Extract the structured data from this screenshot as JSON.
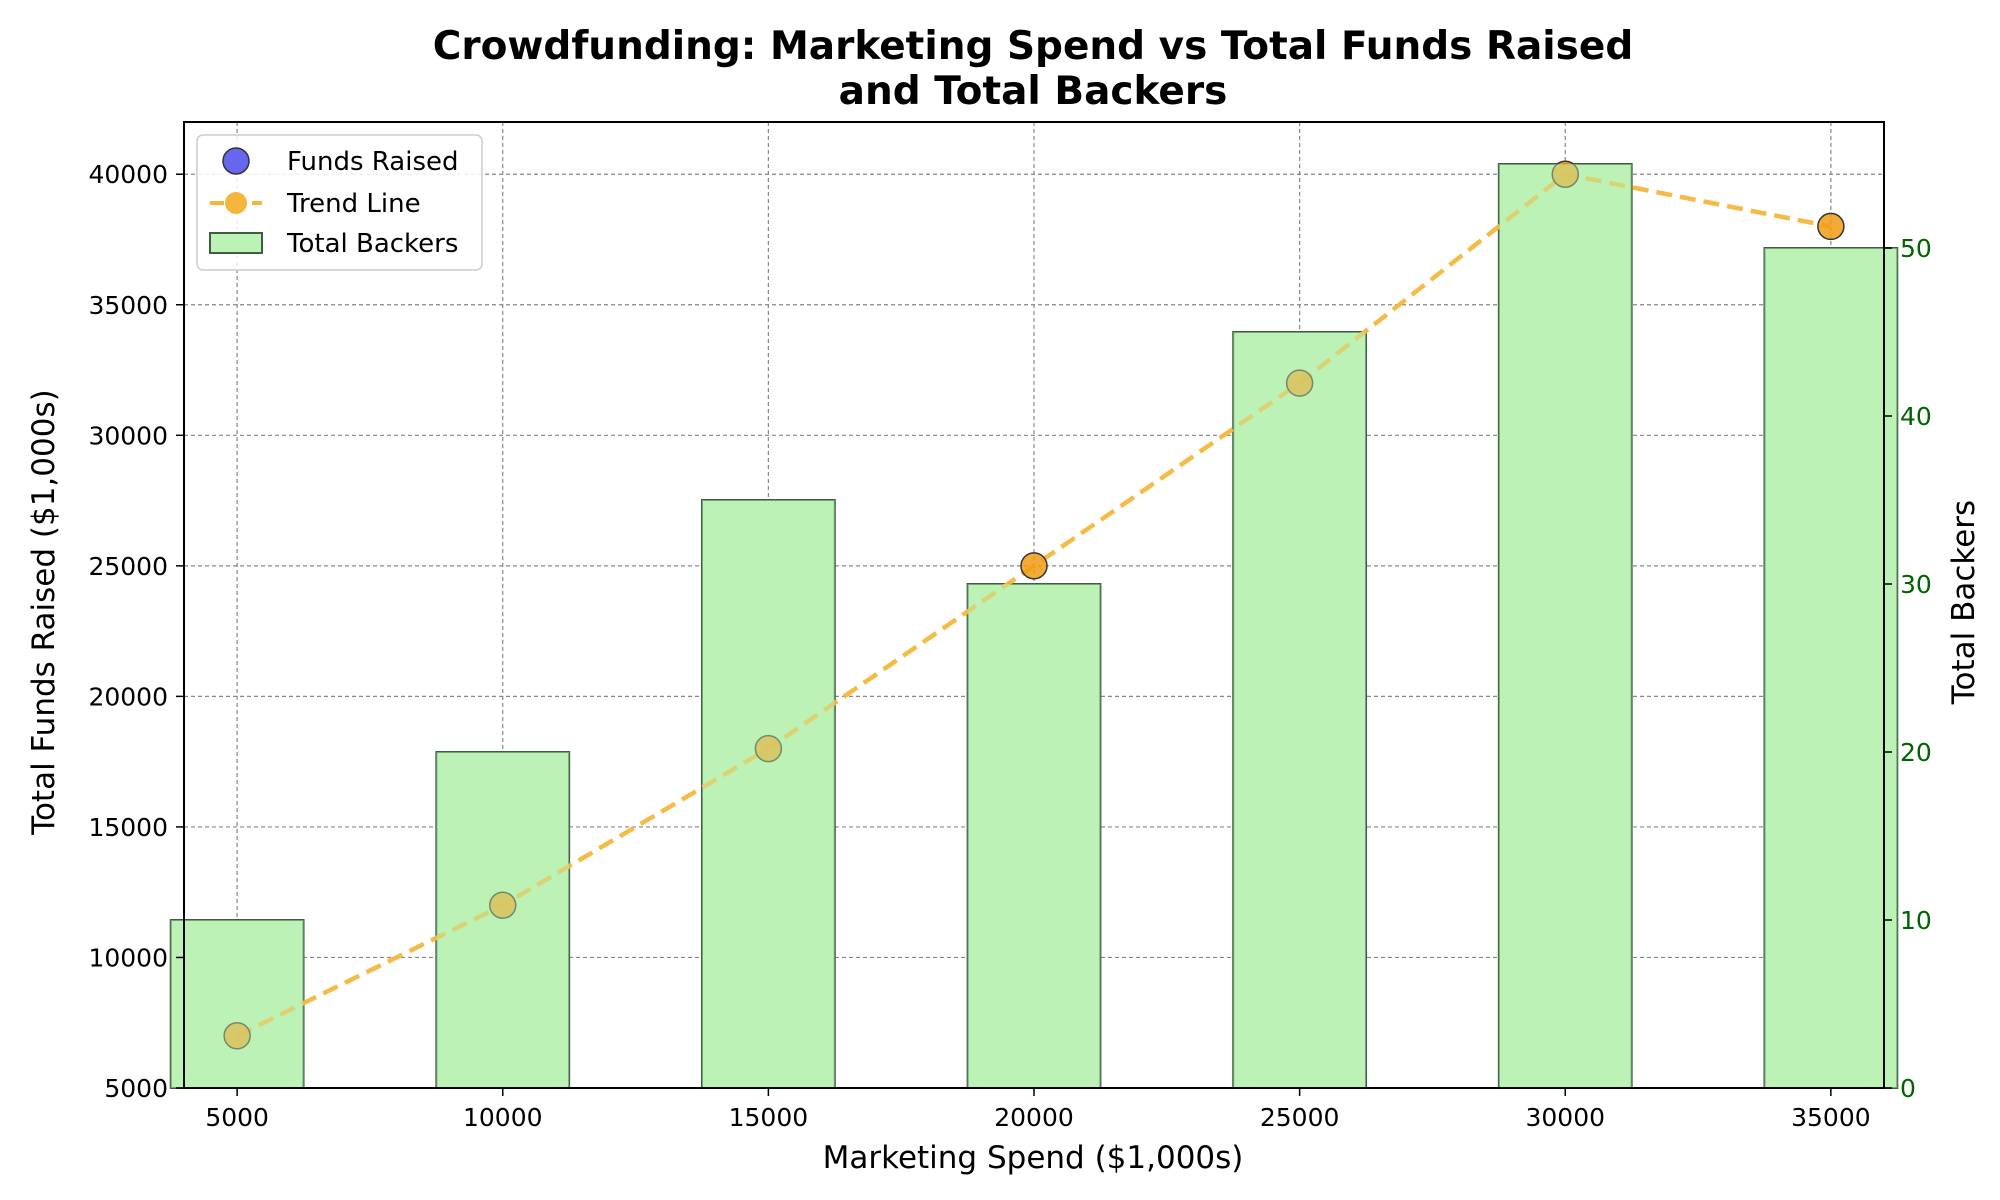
{
  "chart_data": {
    "type": "bar+line+scatter",
    "title_line1": "Crowdfunding: Marketing Spend vs Total Funds Raised",
    "title_line2": "and Total Backers",
    "xlabel": "Marketing Spend ($1,000s)",
    "ylabel": "Total Funds Raised ($1,000s)",
    "ylabel_right": "Total Backers",
    "x": [
      5000,
      10000,
      15000,
      20000,
      25000,
      30000,
      35000
    ],
    "x_ticks": [
      "5000",
      "10000",
      "15000",
      "20000",
      "25000",
      "30000",
      "35000"
    ],
    "y_ticks": [
      "5000",
      "10000",
      "15000",
      "20000",
      "25000",
      "30000",
      "35000",
      "40000"
    ],
    "y_right_ticks": [
      "0",
      "10",
      "20",
      "30",
      "40",
      "50"
    ],
    "ylim": [
      5000,
      42000
    ],
    "ylim_right": [
      0,
      57.5
    ],
    "grid": true,
    "legend_position": "upper-left",
    "series": [
      {
        "name": "Funds Raised",
        "kind": "scatter",
        "axis": "left",
        "values": [
          7000,
          12000,
          18000,
          25000,
          32000,
          40000,
          38000
        ]
      },
      {
        "name": "Trend Line",
        "kind": "line",
        "axis": "left",
        "values": [
          7000,
          12000,
          18000,
          25000,
          32000,
          40000,
          38000
        ]
      },
      {
        "name": "Total Backers",
        "kind": "bar",
        "axis": "right",
        "values": [
          10,
          20,
          35,
          30,
          45,
          55,
          50
        ]
      }
    ],
    "colors": {
      "scatter_fill": "#f29b14",
      "scatter_legend_fill": "#6666ee",
      "trend_line": "#f4b73c",
      "bar_fill": "#bdf2b6",
      "bar_edge": "#3d5e40",
      "right_axis": "#006400",
      "grid": "#888888"
    }
  }
}
